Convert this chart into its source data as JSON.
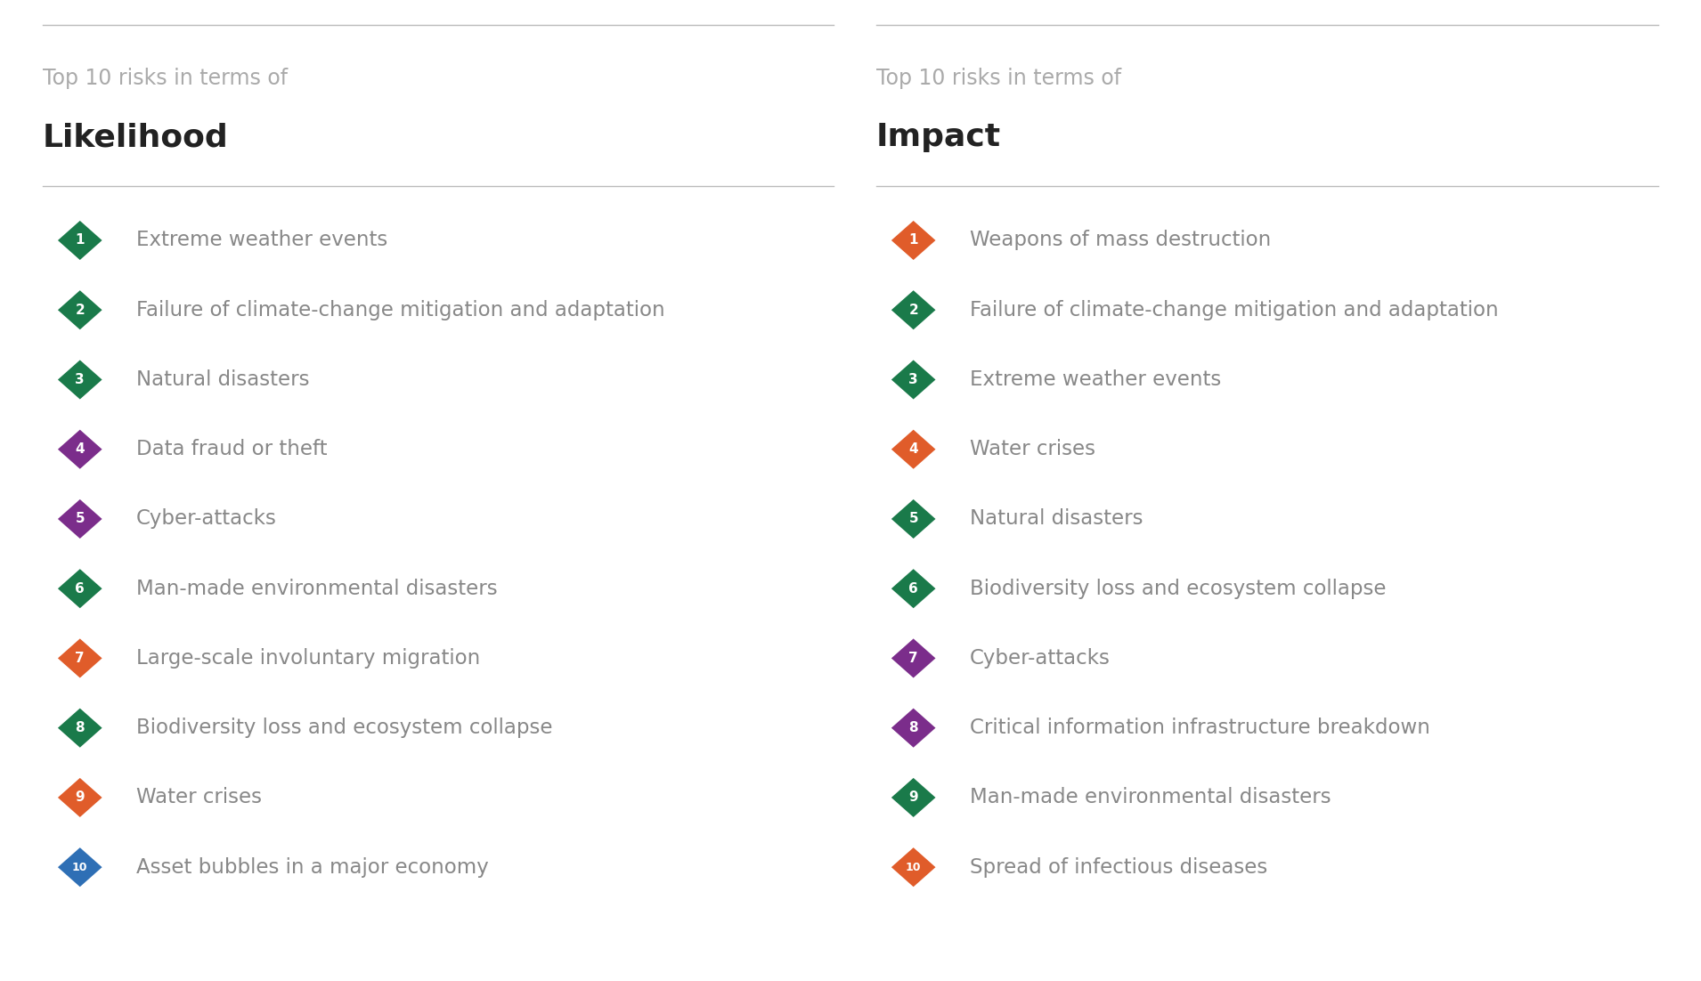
{
  "background_color": "#ffffff",
  "top_line_color": "#bbbbbb",
  "subtitle_color": "#aaaaaa",
  "title_color": "#222222",
  "text_color": "#888888",
  "subtitle_text": "Top 10 risks in terms of",
  "left_title": "Likelihood",
  "right_title": "Impact",
  "likelihood": [
    {
      "rank": "1",
      "text": "Extreme weather events",
      "color": "#1a7a4a"
    },
    {
      "rank": "2",
      "text": "Failure of climate-change mitigation and adaptation",
      "color": "#1a7a4a"
    },
    {
      "rank": "3",
      "text": "Natural disasters",
      "color": "#1a7a4a"
    },
    {
      "rank": "4",
      "text": "Data fraud or theft",
      "color": "#7b2d8b"
    },
    {
      "rank": "5",
      "text": "Cyber-attacks",
      "color": "#7b2d8b"
    },
    {
      "rank": "6",
      "text": "Man-made environmental disasters",
      "color": "#1a7a4a"
    },
    {
      "rank": "7",
      "text": "Large-scale involuntary migration",
      "color": "#e05c2a"
    },
    {
      "rank": "8",
      "text": "Biodiversity loss and ecosystem collapse",
      "color": "#1a7a4a"
    },
    {
      "rank": "9",
      "text": "Water crises",
      "color": "#e05c2a"
    },
    {
      "rank": "10",
      "text": "Asset bubbles in a major economy",
      "color": "#2e6fb5"
    }
  ],
  "impact": [
    {
      "rank": "1",
      "text": "Weapons of mass destruction",
      "color": "#e05c2a"
    },
    {
      "rank": "2",
      "text": "Failure of climate-change mitigation and adaptation",
      "color": "#1a7a4a"
    },
    {
      "rank": "3",
      "text": "Extreme weather events",
      "color": "#1a7a4a"
    },
    {
      "rank": "4",
      "text": "Water crises",
      "color": "#e05c2a"
    },
    {
      "rank": "5",
      "text": "Natural disasters",
      "color": "#1a7a4a"
    },
    {
      "rank": "6",
      "text": "Biodiversity loss and ecosystem collapse",
      "color": "#1a7a4a"
    },
    {
      "rank": "7",
      "text": "Cyber-attacks",
      "color": "#7b2d8b"
    },
    {
      "rank": "8",
      "text": "Critical information infrastructure breakdown",
      "color": "#7b2d8b"
    },
    {
      "rank": "9",
      "text": "Man-made environmental disasters",
      "color": "#1a7a4a"
    },
    {
      "rank": "10",
      "text": "Spread of infectious diseases",
      "color": "#e05c2a"
    }
  ],
  "fig_width": 19.1,
  "fig_height": 11.02,
  "dpi": 100
}
